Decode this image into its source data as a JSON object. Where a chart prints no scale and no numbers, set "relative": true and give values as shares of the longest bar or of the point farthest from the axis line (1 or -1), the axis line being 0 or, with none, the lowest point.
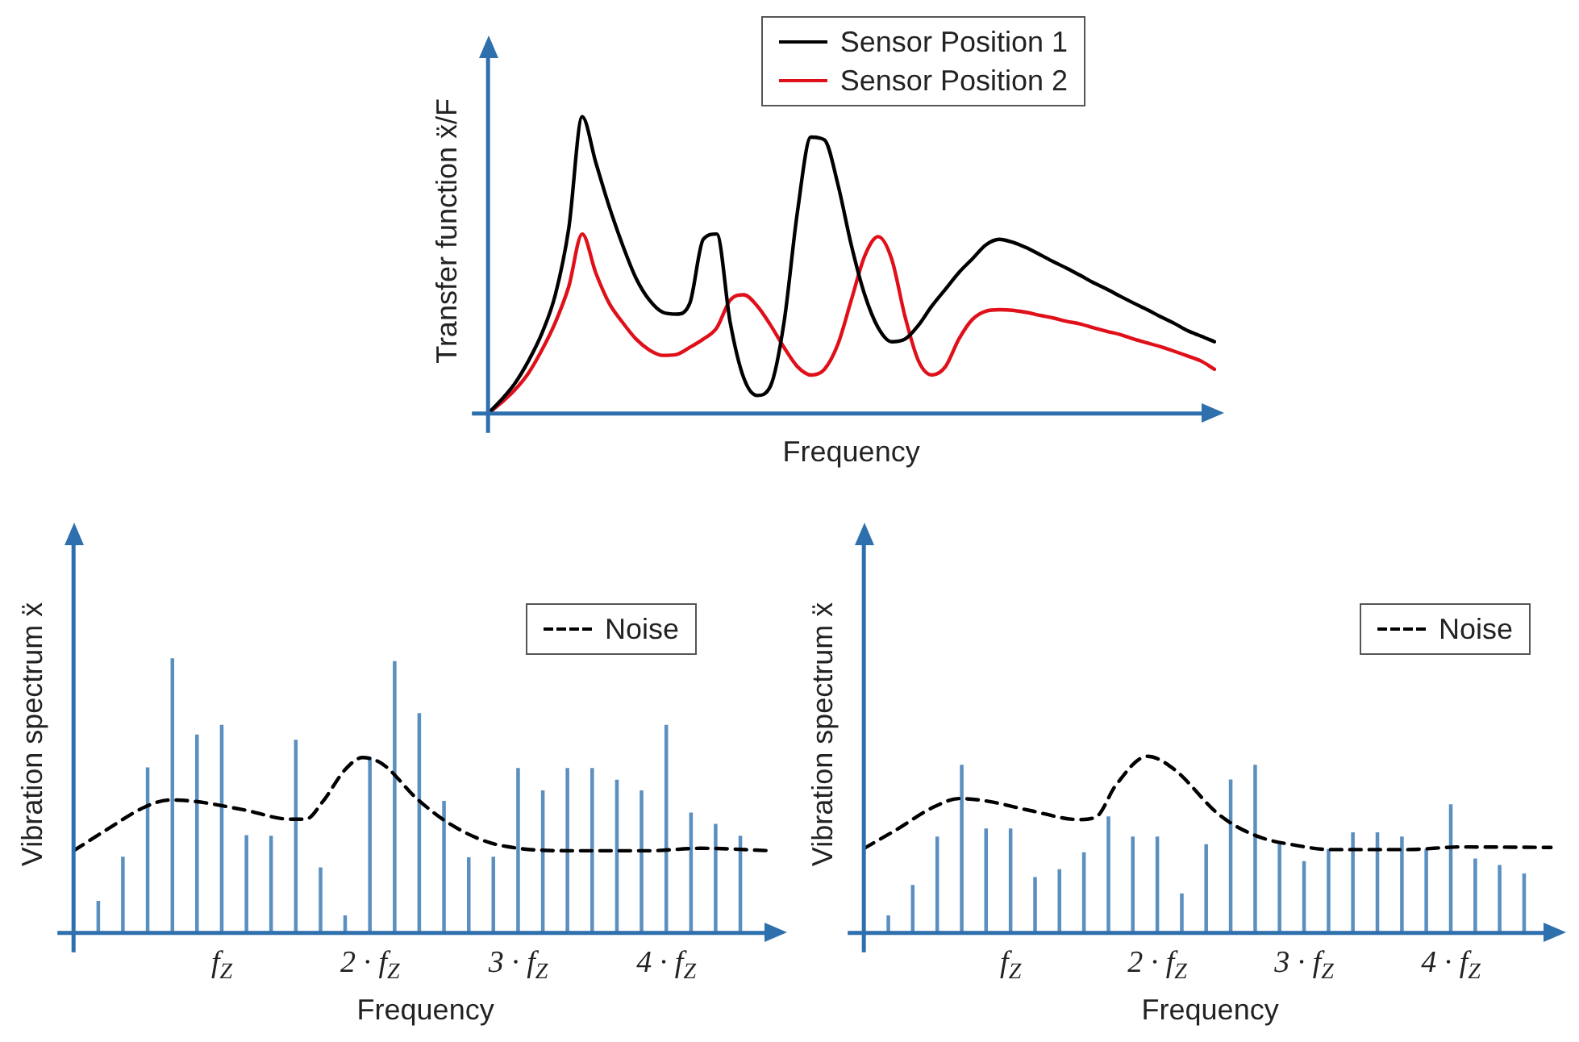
{
  "chart_data": [
    {
      "type": "line",
      "relative": true,
      "xlabel": "Frequency",
      "ylabel": "Transfer function ẍ/F",
      "legend": "top right",
      "tick_labels": false,
      "categories": [
        null,
        null,
        null,
        null,
        null,
        null,
        null,
        null,
        null,
        null,
        null,
        null,
        null,
        null,
        null,
        null,
        null,
        null,
        null,
        null,
        null,
        null,
        null,
        null,
        null,
        null,
        null,
        null,
        null,
        null,
        null,
        null,
        null,
        null,
        null,
        null,
        null,
        null,
        null,
        null,
        null,
        null,
        null,
        null,
        null,
        null,
        null,
        null,
        null,
        null,
        null,
        null,
        null,
        null,
        null
      ],
      "series": [
        {
          "name": "Sensor Position 1",
          "color": "#000000",
          "values": [
            0,
            0.047,
            0.102,
            0.177,
            0.27,
            0.4,
            0.624,
            1.0,
            0.847,
            0.698,
            0.568,
            0.456,
            0.382,
            0.341,
            0.335,
            0.372,
            0.587,
            0.605,
            0.307,
            0.121,
            0.061,
            0.093,
            0.307,
            0.68,
            0.931,
            0.922,
            0.773,
            0.568,
            0.4,
            0.289,
            0.242,
            0.251,
            0.298,
            0.363,
            0.419,
            0.475,
            0.521,
            0.568,
            0.587,
            0.577,
            0.559,
            0.536,
            0.512,
            0.49,
            0.466,
            0.441,
            0.419,
            0.395,
            0.372,
            0.35,
            0.326,
            0.304,
            0.279,
            0.261,
            0.242
          ]
        },
        {
          "name": "Sensor Position 2",
          "color": "#e0101a",
          "values": [
            0,
            0.037,
            0.08,
            0.136,
            0.214,
            0.307,
            0.428,
            0.605,
            0.475,
            0.372,
            0.307,
            0.251,
            0.214,
            0.196,
            0.199,
            0.223,
            0.251,
            0.289,
            0.382,
            0.4,
            0.363,
            0.298,
            0.223,
            0.158,
            0.13,
            0.149,
            0.233,
            0.382,
            0.531,
            0.596,
            0.521,
            0.326,
            0.177,
            0.13,
            0.158,
            0.251,
            0.317,
            0.345,
            0.35,
            0.348,
            0.341,
            0.331,
            0.322,
            0.311,
            0.302,
            0.289,
            0.277,
            0.266,
            0.251,
            0.238,
            0.225,
            0.21,
            0.194,
            0.177,
            0.149
          ]
        }
      ]
    },
    {
      "type": "bar",
      "relative": true,
      "xlabel": "Frequency",
      "ylabel": "Vibration spectrum ẍ",
      "legend": "top right",
      "tick_labels": "x",
      "xlim": [
        0,
        4.75
      ],
      "xticks": [
        {
          "value": 1,
          "label": "f$_{Z}$"
        },
        {
          "value": 2,
          "label": "2 · f$_{Z}$"
        },
        {
          "value": 3,
          "label": "3 · f$_{Z}$"
        },
        {
          "value": 4,
          "label": "4 · f$_{Z}$"
        }
      ],
      "series": [
        {
          "type": "bar",
          "color": "#5b8fc0",
          "x": [
            0.167,
            0.333,
            0.5,
            0.667,
            0.833,
            1,
            1.167,
            1.333,
            1.5,
            1.667,
            1.833,
            2,
            2.167,
            2.333,
            2.5,
            2.667,
            2.833,
            3,
            3.167,
            3.333,
            3.5,
            3.667,
            3.833,
            4,
            4.167,
            4.333,
            4.5
          ],
          "values": [
            0.115,
            0.276,
            0.602,
            1.0,
            0.722,
            0.757,
            0.355,
            0.353,
            0.703,
            0.237,
            0.062,
            0.64,
            0.99,
            0.8,
            0.48,
            0.274,
            0.276,
            0.6,
            0.518,
            0.6,
            0.6,
            0.557,
            0.518,
            0.757,
            0.437,
            0.396,
            0.353
          ]
        },
        {
          "type": "line",
          "name": "Noise",
          "color": "#000000",
          "line_style": "dashed",
          "x": [
            0,
            0.233,
            0.483,
            0.65,
            0.817,
            1.142,
            1.467,
            1.567,
            1.683,
            1.833,
            1.95,
            2.083,
            2.317,
            2.533,
            2.783,
            3,
            3.333,
            3.883,
            4.233,
            4.7
          ],
          "values": [
            0.3,
            0.38,
            0.46,
            0.485,
            0.48,
            0.45,
            0.415,
            0.415,
            0.48,
            0.596,
            0.64,
            0.617,
            0.49,
            0.4,
            0.334,
            0.309,
            0.3,
            0.3,
            0.309,
            0.3
          ]
        }
      ]
    },
    {
      "type": "bar",
      "relative": true,
      "xlabel": "Frequency",
      "ylabel": "Vibration spectrum ẍ",
      "legend": "top right",
      "tick_labels": "x",
      "xlim": [
        0,
        4.72
      ],
      "xticks": [
        {
          "value": 1,
          "label": "f$_{Z}$"
        },
        {
          "value": 2,
          "label": "2 · f$_{Z}$"
        },
        {
          "value": 3,
          "label": "3 · f$_{Z}$"
        },
        {
          "value": 4,
          "label": "4 · f$_{Z}$"
        }
      ],
      "series": [
        {
          "type": "bar",
          "color": "#5b8fc0",
          "x": [
            0.167,
            0.333,
            0.5,
            0.667,
            0.833,
            1,
            1.167,
            1.333,
            1.5,
            1.667,
            1.833,
            2,
            2.167,
            2.333,
            2.5,
            2.667,
            2.833,
            3,
            3.167,
            3.333,
            3.5,
            3.667,
            3.833,
            4,
            4.167,
            4.333,
            4.5
          ],
          "values": [
            0.096,
            0.269,
            0.543,
            0.949,
            0.588,
            0.588,
            0.313,
            0.358,
            0.454,
            0.657,
            0.543,
            0.543,
            0.221,
            0.499,
            0.866,
            0.949,
            0.499,
            0.403,
            0.472,
            0.567,
            0.567,
            0.543,
            0.472,
            0.725,
            0.418,
            0.382,
            0.334
          ]
        },
        {
          "type": "line",
          "name": "Noise",
          "color": "#000000",
          "line_style": "dashed",
          "x": [
            0,
            0.217,
            0.483,
            0.65,
            0.842,
            1.133,
            1.467,
            1.583,
            1.717,
            1.933,
            2.117,
            2.417,
            2.667,
            2.967,
            3.183,
            3.7,
            4.067,
            4.683
          ],
          "values": [
            0.478,
            0.582,
            0.716,
            0.761,
            0.746,
            0.693,
            0.642,
            0.657,
            0.836,
            1.0,
            0.925,
            0.672,
            0.552,
            0.493,
            0.472,
            0.472,
            0.487,
            0.484
          ]
        }
      ]
    }
  ]
}
